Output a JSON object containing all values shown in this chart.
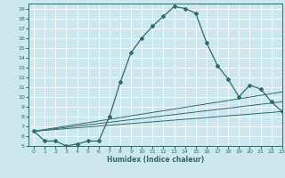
{
  "xlabel": "Humidex (Indice chaleur)",
  "ylabel": "",
  "background_color": "#cce8ee",
  "grid_color": "#ffffff",
  "line_color": "#2e6b6b",
  "xlim": [
    -0.5,
    23
  ],
  "ylim": [
    5,
    19.5
  ],
  "xticks": [
    0,
    1,
    2,
    3,
    4,
    5,
    6,
    7,
    8,
    9,
    10,
    11,
    12,
    13,
    14,
    15,
    16,
    17,
    18,
    19,
    20,
    21,
    22,
    23
  ],
  "yticks": [
    5,
    6,
    7,
    8,
    9,
    10,
    11,
    12,
    13,
    14,
    15,
    16,
    17,
    18,
    19
  ],
  "series": [
    {
      "x": [
        0,
        1,
        2,
        3,
        4,
        5,
        6,
        7,
        8,
        9,
        10,
        11,
        12,
        13,
        14,
        15,
        16,
        17,
        18,
        19,
        20,
        21,
        22,
        23
      ],
      "y": [
        6.5,
        5.5,
        5.5,
        5.0,
        5.2,
        5.5,
        5.5,
        8.0,
        11.5,
        14.5,
        16.0,
        17.2,
        18.2,
        19.2,
        19.0,
        18.5,
        15.5,
        13.2,
        11.8,
        10.0,
        11.2,
        10.8,
        9.5,
        8.5
      ],
      "marker": "D",
      "has_marker": true
    },
    {
      "x": [
        0,
        23
      ],
      "y": [
        6.5,
        8.5
      ],
      "marker": null,
      "has_marker": false
    },
    {
      "x": [
        0,
        23
      ],
      "y": [
        6.5,
        9.5
      ],
      "marker": null,
      "has_marker": false
    },
    {
      "x": [
        0,
        23
      ],
      "y": [
        6.5,
        10.5
      ],
      "marker": null,
      "has_marker": false
    }
  ]
}
